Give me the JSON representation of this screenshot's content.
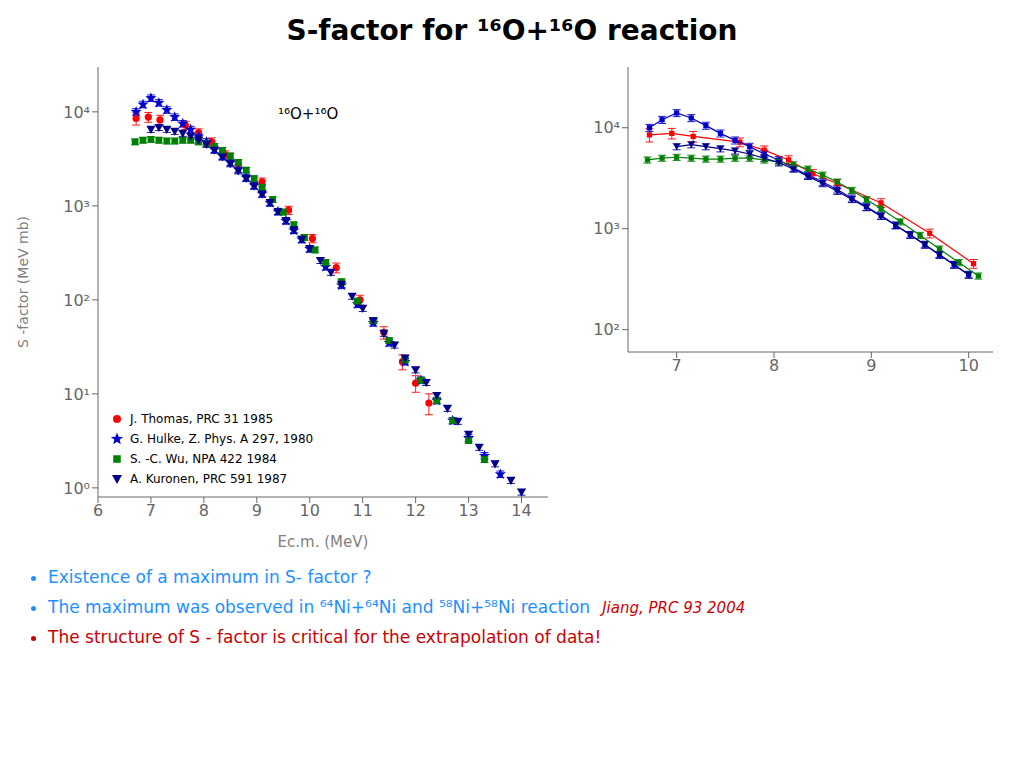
{
  "chart_data": [
    {
      "type": "scatter",
      "title": "S-factor for ¹⁶O+¹⁶O reaction",
      "xlabel": "Ec.m. (MeV)",
      "ylabel": "S -factor (MeV mb)",
      "log": "y",
      "legend": "lower left",
      "xlim": [
        6,
        14.5
      ],
      "xticks": [
        6,
        7,
        8,
        9,
        10,
        11,
        12,
        13,
        14
      ],
      "ylim": [
        0.8,
        30000
      ],
      "yticks": [
        {
          "value": 1,
          "label": "10⁰"
        },
        {
          "value": 10,
          "label": "10¹"
        },
        {
          "value": 100,
          "label": "10²"
        },
        {
          "value": 1000,
          "label": "10³"
        },
        {
          "value": 10000,
          "label": "10⁴"
        }
      ],
      "grid": false,
      "annotations": [
        {
          "text": "¹⁶O+¹⁶O",
          "color": "#000000"
        }
      ],
      "series": [
        {
          "name": "J. Thomas, PRC 31 1985",
          "color": "#FF0000",
          "marker": "circle",
          "x": [
            6.72,
            6.95,
            7.17,
            7.65,
            7.9,
            8.15,
            8.4,
            8.65,
            9.1,
            9.6,
            10.05,
            10.5,
            10.95,
            11.4,
            11.75,
            12.0,
            12.25
          ],
          "values": [
            8500,
            8800,
            8200,
            7200,
            6000,
            4800,
            3500,
            2800,
            1800,
            900,
            450,
            220,
            100,
            45,
            22,
            13,
            8
          ],
          "errors": [
            1275,
            1056,
            984,
            720,
            600,
            480,
            350,
            280,
            180,
            90,
            45,
            26.4,
            12,
            6.75,
            3.96,
            2.6,
            2
          ]
        },
        {
          "name": "G. Hulke, Z. Phys. A 297, 1980",
          "color": "#0000CD",
          "marker": "star",
          "x": [
            6.72,
            6.85,
            7.0,
            7.15,
            7.3,
            7.45,
            7.6,
            7.75,
            7.9,
            8.05,
            8.2,
            8.35,
            8.5,
            8.65,
            8.8,
            8.95,
            9.1,
            9.25,
            9.4,
            9.55,
            9.7,
            9.85,
            10.0,
            10.3,
            10.6,
            10.9,
            11.2,
            11.5,
            11.8,
            12.1,
            12.4,
            12.7,
            13.0,
            13.3,
            13.6
          ],
          "values": [
            10000,
            12000,
            14000,
            12500,
            10500,
            8800,
            7500,
            6500,
            5500,
            4800,
            4000,
            3400,
            2900,
            2450,
            2000,
            1650,
            1350,
            1080,
            870,
            695,
            550,
            440,
            350,
            225,
            143,
            90,
            57,
            35,
            22,
            14,
            8.5,
            5.2,
            3.4,
            2.2,
            1.4
          ],
          "errors": [
            800,
            960,
            1120,
            1000,
            840,
            704,
            600,
            520,
            440,
            384,
            320,
            272,
            232,
            196,
            160,
            132,
            108,
            86.4,
            69.6,
            55.6,
            44,
            35.2,
            28,
            18,
            11.44,
            7.2,
            4.56,
            2.8,
            1.76,
            1.12,
            0.68,
            0.416,
            0.272,
            0.176,
            0.112
          ]
        },
        {
          "name": "S. -C. Wu, NPA 422 1984",
          "color": "#008000",
          "marker": "square",
          "x": [
            6.7,
            6.85,
            7.0,
            7.15,
            7.3,
            7.45,
            7.6,
            7.75,
            7.9,
            8.05,
            8.2,
            8.35,
            8.5,
            8.65,
            8.8,
            8.95,
            9.1,
            9.3,
            9.5,
            9.7,
            9.9,
            10.1,
            10.3,
            10.6,
            10.9,
            11.2,
            11.5,
            11.8,
            12.1,
            12.4,
            12.7,
            13.0,
            13.3
          ],
          "values": [
            4800,
            5000,
            5100,
            5000,
            4900,
            4900,
            5000,
            5000,
            4800,
            4600,
            4300,
            3900,
            3400,
            2900,
            2400,
            1950,
            1580,
            1170,
            860,
            630,
            462,
            340,
            250,
            156,
            97,
            60,
            37,
            23,
            14,
            8.5,
            5.2,
            3.2,
            2.0
          ],
          "errors": [
            336,
            350,
            357,
            350,
            343,
            343,
            350,
            350,
            336,
            322,
            301,
            273,
            238,
            203,
            168,
            136.5,
            110.6,
            81.9,
            60.2,
            44.1,
            32.34,
            23.8,
            17.5,
            10.92,
            6.79,
            4.2,
            2.59,
            1.61,
            0.98,
            0.595,
            0.364,
            0.224,
            0.14
          ]
        },
        {
          "name": "A. Kuronen, PRC 591 1987",
          "color": "#00008B",
          "marker": "triangle_down",
          "x": [
            7.0,
            7.15,
            7.3,
            7.45,
            7.6,
            7.75,
            7.9,
            8.05,
            8.2,
            8.35,
            8.5,
            8.65,
            8.8,
            8.95,
            9.1,
            9.25,
            9.4,
            9.55,
            9.7,
            9.85,
            10.0,
            10.2,
            10.4,
            10.6,
            10.8,
            11.0,
            11.2,
            11.4,
            11.6,
            11.8,
            12.0,
            12.2,
            12.4,
            12.6,
            12.8,
            13.0,
            13.2,
            13.5,
            13.8,
            14.0
          ],
          "values": [
            6500,
            6800,
            6500,
            6200,
            5900,
            5500,
            5000,
            4500,
            3900,
            3300,
            2800,
            2350,
            1950,
            1620,
            1330,
            1080,
            870,
            695,
            555,
            440,
            350,
            262,
            196,
            146,
            109,
            81,
            60,
            44,
            33,
            24,
            18,
            13.2,
            9.6,
            7.0,
            5.1,
            3.7,
            2.7,
            1.8,
            1.2,
            0.9
          ],
          "errors": [
            455,
            476,
            455,
            434,
            413,
            385,
            350,
            315,
            273,
            231,
            196,
            164.5,
            136.5,
            113.4,
            93.1,
            75.6,
            60.9,
            48.65,
            38.85,
            30.8,
            24.5,
            18.34,
            13.72,
            10.22,
            7.63,
            5.67,
            4.2,
            3.08,
            2.31,
            1.68,
            1.26,
            0.924,
            0.672,
            0.49,
            0.357,
            0.259,
            0.189,
            0.126,
            0.084,
            0.063
          ]
        }
      ]
    },
    {
      "type": "line",
      "log": "y",
      "xlim": [
        6.5,
        10.25
      ],
      "xticks": [
        7,
        8,
        9,
        10
      ],
      "ylim": [
        60,
        40000
      ],
      "yticks": [
        {
          "value": 100,
          "label": "10²"
        },
        {
          "value": 1000,
          "label": "10³"
        },
        {
          "value": 10000,
          "label": "10⁴"
        }
      ],
      "grid": false,
      "series": [
        {
          "color": "#FF0000",
          "marker": "square",
          "x": [
            6.72,
            6.95,
            7.17,
            7.65,
            7.9,
            8.15,
            8.4,
            8.65,
            9.1,
            9.6,
            10.05
          ],
          "values": [
            8500,
            8800,
            8200,
            7200,
            6000,
            4800,
            3500,
            2800,
            1800,
            900,
            450
          ],
          "errors": [
            1275,
            1056,
            984,
            720,
            600,
            480,
            350,
            280,
            180,
            90,
            45
          ]
        },
        {
          "color": "#0000CD",
          "marker": "square",
          "x": [
            6.72,
            6.85,
            7.0,
            7.15,
            7.3,
            7.45,
            7.6,
            7.75,
            7.9,
            8.05,
            8.2,
            8.35,
            8.5,
            8.65,
            8.8,
            8.95,
            9.1,
            9.25,
            9.4,
            9.55,
            9.7,
            9.85,
            10.0
          ],
          "values": [
            10000,
            12000,
            14000,
            12500,
            10500,
            8800,
            7500,
            6500,
            5500,
            4800,
            4000,
            3400,
            2900,
            2450,
            2000,
            1650,
            1350,
            1080,
            870,
            695,
            550,
            440,
            350
          ],
          "errors": [
            800,
            960,
            1120,
            1000,
            840,
            704,
            600,
            520,
            440,
            384,
            320,
            272,
            232,
            196,
            160,
            132,
            108,
            86.4,
            69.6,
            55.6,
            44,
            35.2,
            28
          ]
        },
        {
          "color": "#008000",
          "marker": "square",
          "x": [
            6.7,
            6.85,
            7.0,
            7.15,
            7.3,
            7.45,
            7.6,
            7.75,
            7.9,
            8.05,
            8.2,
            8.35,
            8.5,
            8.65,
            8.8,
            8.95,
            9.1,
            9.3,
            9.5,
            9.7,
            9.9,
            10.1
          ],
          "values": [
            4800,
            5000,
            5100,
            5000,
            4900,
            4900,
            5000,
            5000,
            4800,
            4600,
            4300,
            3900,
            3400,
            2900,
            2400,
            1950,
            1580,
            1170,
            860,
            630,
            462,
            340
          ],
          "errors": [
            336,
            350,
            357,
            350,
            343,
            343,
            350,
            350,
            336,
            322,
            301,
            273,
            238,
            203,
            168,
            136.5,
            110.6,
            81.9,
            60.2,
            44.1,
            32.34,
            23.8
          ]
        },
        {
          "color": "#00008B",
          "marker": "triangle_down",
          "x": [
            7.0,
            7.15,
            7.3,
            7.45,
            7.6,
            7.75,
            7.9,
            8.05,
            8.2,
            8.35,
            8.5,
            8.65,
            8.8,
            8.95,
            9.1,
            9.25,
            9.4,
            9.55,
            9.7,
            9.85,
            10.0
          ],
          "values": [
            6500,
            6800,
            6500,
            6200,
            5900,
            5500,
            5000,
            4500,
            3900,
            3300,
            2800,
            2350,
            1950,
            1620,
            1330,
            1080,
            870,
            695,
            555,
            440,
            350
          ],
          "errors": [
            455,
            476,
            455,
            434,
            413,
            385,
            350,
            315,
            273,
            231,
            196,
            164.5,
            136.5,
            113.4,
            93.1,
            75.6,
            60.9,
            48.65,
            38.85,
            30.8,
            24.5
          ]
        }
      ]
    }
  ],
  "notes": [
    {
      "text": "Existence of a maximum in S- factor ?",
      "color": "#1E90FF"
    },
    {
      "text": "The maximum was observed in ⁶⁴Ni+⁶⁴Ni and ⁵⁸Ni+⁵⁸Ni reaction",
      "color": "#1E90FF",
      "reference": {
        "text": "Jiang, PRC 93 2004",
        "color": "#CC0000"
      }
    },
    {
      "text": "The structure of S - factor is critical for the extrapolation of data!",
      "color": "#CC0000"
    }
  ]
}
